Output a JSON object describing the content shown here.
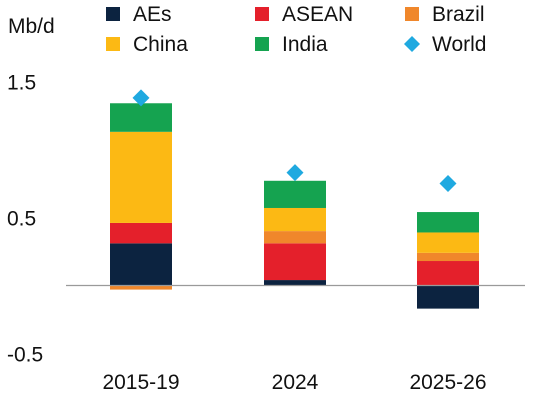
{
  "chart_data": {
    "type": "bar",
    "stacked": true,
    "ylabel": "Mb/d",
    "ylim": [
      -0.5,
      1.5
    ],
    "y_ticks": [
      "1.5",
      "0.5",
      "-0.5"
    ],
    "y_tick_values": [
      1.5,
      0.5,
      -0.5
    ],
    "categories": [
      "2015-19",
      "2024",
      "2025-26"
    ],
    "series": [
      {
        "name": "AEs",
        "color": "#0c2340",
        "values": [
          0.31,
          0.04,
          -0.17
        ]
      },
      {
        "name": "ASEAN",
        "color": "#e4202b",
        "values": [
          0.15,
          0.27,
          0.18
        ]
      },
      {
        "name": "Brazil",
        "color": "#f0872b",
        "values": [
          -0.03,
          0.09,
          0.06
        ]
      },
      {
        "name": "China",
        "color": "#fcb914",
        "values": [
          0.67,
          0.17,
          0.15
        ]
      },
      {
        "name": "India",
        "color": "#15a350",
        "values": [
          0.21,
          0.2,
          0.15
        ]
      }
    ],
    "markers": {
      "name": "World",
      "color": "#1fa9e0",
      "shape": "diamond",
      "values": [
        1.38,
        0.83,
        0.75
      ]
    },
    "legend_position": "top",
    "grid": false
  }
}
